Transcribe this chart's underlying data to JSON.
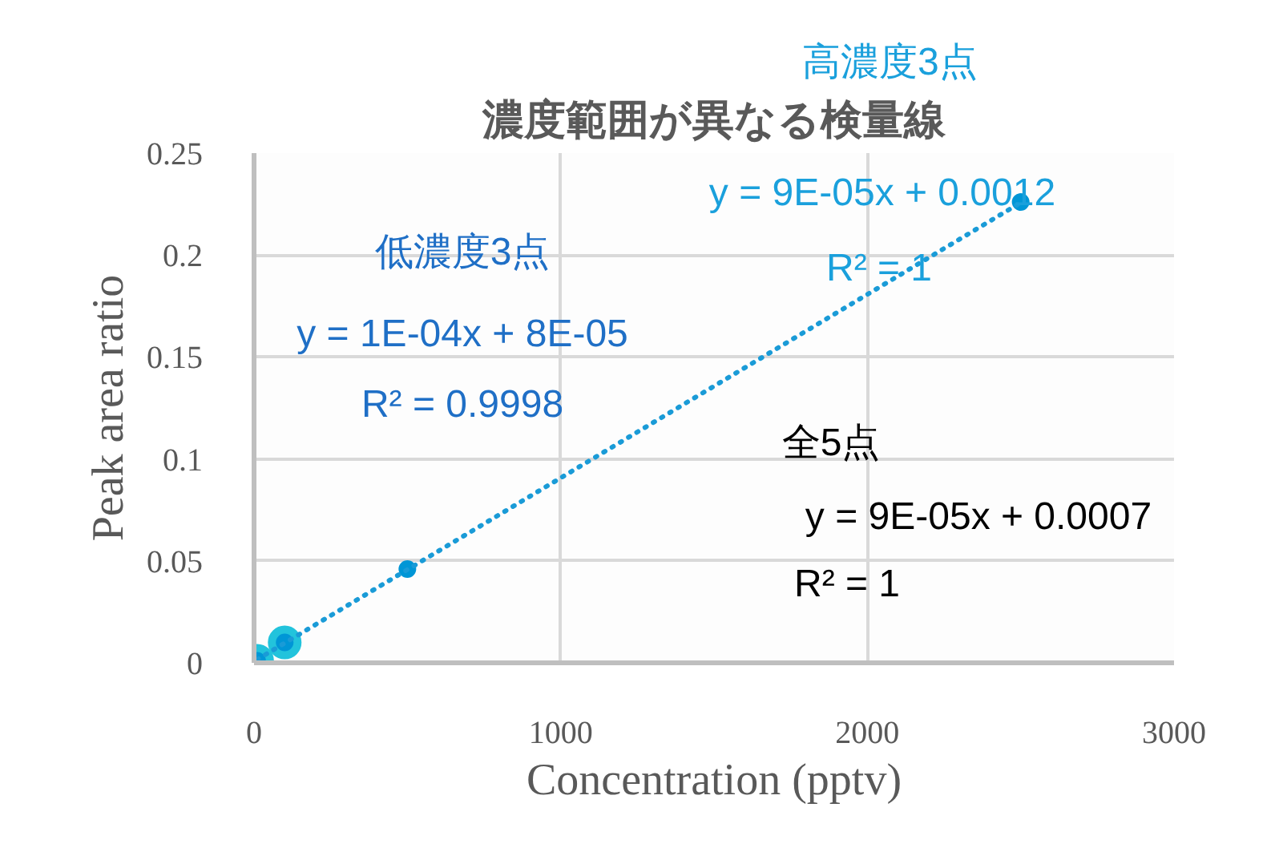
{
  "chart_data": {
    "type": "scatter",
    "title": "濃度範囲が異なる検量線",
    "xlabel": "Concentration (pptv)",
    "ylabel": "Peak area ratio",
    "series": [
      {
        "color": "#22c3dc",
        "x": [
          10,
          100
        ],
        "values": [
          0.001,
          0.01
        ]
      },
      {
        "color": "#0096d6",
        "x": [
          10,
          100,
          500,
          2500
        ],
        "values": [
          0.001,
          0.01,
          0.046,
          0.226
        ]
      },
      {
        "type": "line",
        "color": "#1a9bd7",
        "line_style": "dotted",
        "marker": "none",
        "x": [
          10,
          2500
        ],
        "values": [
          0.0016,
          0.2257
        ]
      }
    ],
    "annotations": [
      "高濃度3点",
      "y = 9E-05x + 0.0012",
      "R² = 1",
      "低濃度3点",
      "y = 1E-04x + 8E-05",
      "R² = 0.9998",
      "全5点",
      "y = 9E-05x + 0.0007",
      "R² = 1"
    ],
    "xlim": [
      0,
      3000
    ],
    "ylim": [
      0,
      0.25
    ],
    "xticks": [
      0,
      1000,
      2000,
      3000
    ],
    "yticks": [
      0,
      0.05,
      {
        "value": 0.1,
        "label": "0.1"
      },
      0.15,
      {
        "value": 0.2,
        "label": "0.2"
      },
      0.25
    ],
    "grid": true,
    "marker": "circle"
  }
}
